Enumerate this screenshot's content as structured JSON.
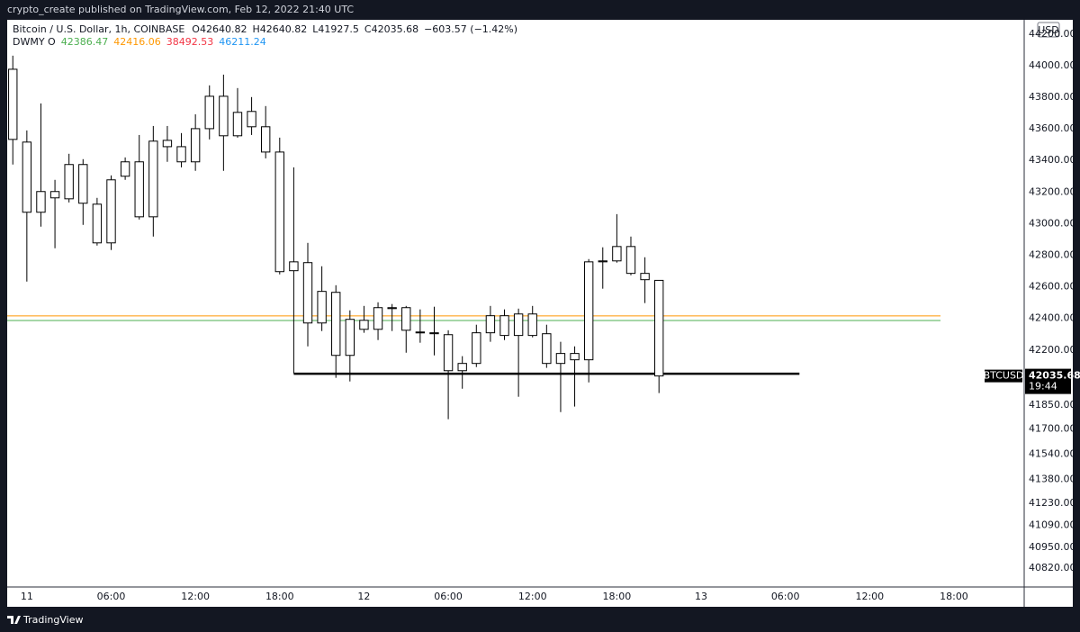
{
  "header": "crypto_create published on TradingView.com, Feb 12, 2022 21:40 UTC",
  "footer": "TradingView",
  "chart_data": {
    "type": "candlestick",
    "symbol_line": "Bitcoin / U.S. Dollar, 1h, COINBASE",
    "ohlc": [
      {
        "label": "O",
        "value": 42640.82
      },
      {
        "label": "H",
        "value": 42640.82
      },
      {
        "label": "L",
        "value": 41927.5
      },
      {
        "label": "C",
        "value": 42035.68
      }
    ],
    "change": "−603.57 (−1.42%)",
    "indicator": {
      "name": "DWMY O",
      "values": [
        42386.47,
        42416.06,
        38492.53,
        46211.24
      ],
      "colors": [
        "#4caf50",
        "#ff9800",
        "#f23645",
        "#2196f3"
      ]
    },
    "currency": "USD",
    "symbol": "BTCUSD",
    "last_price": 42035.68,
    "countdown": "19:44",
    "open": [
      43533,
      43516,
      43072,
      43163,
      43157,
      43129,
      43123,
      42878,
      43300,
      43391,
      43043,
      43527,
      43487,
      43391,
      43601,
      43806,
      43556,
      43710,
      43613,
      43453,
      42702,
      42753,
      42371,
      42565,
      42166,
      42388,
      42331,
      42468,
      42468,
      42314,
      42309,
      42297,
      42069,
      42115,
      42309,
      42417,
      42292,
      42428,
      42303,
      42115,
      42178,
      42138,
      42758,
      42764,
      42855,
      42685,
      42640.82
    ],
    "high": [
      44063,
      43590,
      43761,
      43277,
      43442,
      43408,
      43163,
      43305,
      43419,
      43561,
      43618,
      43618,
      43573,
      43692,
      43875,
      43943,
      43858,
      43801,
      43744,
      43544,
      43356,
      42878,
      42730,
      42610,
      42451,
      42479,
      42502,
      42491,
      42479,
      42457,
      42474,
      42325,
      42161,
      42360,
      42479,
      42457,
      42462,
      42479,
      42360,
      42252,
      42223,
      42776,
      42850,
      43060,
      42918,
      42787,
      42640.82
    ],
    "low": [
      43374,
      42633,
      42981,
      42844,
      43134,
      42992,
      42861,
      42833,
      43277,
      43026,
      42918,
      43391,
      43356,
      43334,
      43533,
      43334,
      43544,
      43561,
      43413,
      42679,
      42052,
      42223,
      42320,
      42024,
      42001,
      42309,
      42263,
      42320,
      42183,
      42246,
      42166,
      41762,
      41955,
      42092,
      42252,
      42263,
      41904,
      42280,
      42087,
      41807,
      41842,
      41995,
      42588,
      42753,
      42673,
      42497,
      41927.5
    ],
    "close": [
      43977,
      43072,
      43203,
      43203,
      43374,
      43374,
      42878,
      43277,
      43391,
      43043,
      43522,
      43487,
      43391,
      43601,
      43806,
      43556,
      43704,
      43613,
      43453,
      42696,
      42758,
      42371,
      42571,
      42166,
      42394,
      42331,
      42468,
      42462,
      42325,
      42314,
      42303,
      42069,
      42115,
      42309,
      42417,
      42292,
      42428,
      42292,
      42115,
      42178,
      42138,
      42758,
      42764,
      42855,
      42685,
      42645,
      42035.68
    ],
    "support_line": {
      "value": 42050,
      "x": [
        20,
        56
      ]
    },
    "xlim": [
      -0.4,
      72
    ],
    "xticks": [
      {
        "value": 1,
        "label": "11"
      },
      {
        "value": 7,
        "label": "06:00"
      },
      {
        "value": 13,
        "label": "12:00"
      },
      {
        "value": 19,
        "label": "18:00"
      },
      {
        "value": 25,
        "label": "12"
      },
      {
        "value": 31,
        "label": "06:00"
      },
      {
        "value": 37,
        "label": "12:00"
      },
      {
        "value": 43,
        "label": "18:00"
      },
      {
        "value": 49,
        "label": "13"
      },
      {
        "value": 55,
        "label": "06:00"
      },
      {
        "value": 61,
        "label": "12:00"
      },
      {
        "value": 67,
        "label": "18:00"
      }
    ],
    "ylim": [
      40700,
      44290
    ],
    "yticks": [
      {
        "value": 44200,
        "label": "44200.00"
      },
      {
        "value": 44000,
        "label": "44000.00"
      },
      {
        "value": 43800,
        "label": "43800.00"
      },
      {
        "value": 43600,
        "label": "43600.00"
      },
      {
        "value": 43400,
        "label": "43400.00"
      },
      {
        "value": 43200,
        "label": "43200.00"
      },
      {
        "value": 43000,
        "label": "43000.00"
      },
      {
        "value": 42800,
        "label": "42800.00"
      },
      {
        "value": 42600,
        "label": "42600.00"
      },
      {
        "value": 42400,
        "label": "42400.00"
      },
      {
        "value": 42200,
        "label": "42200.00"
      },
      {
        "value": 41850,
        "label": "41850.00"
      },
      {
        "value": 41700,
        "label": "41700.00"
      },
      {
        "value": 41540,
        "label": "41540.00"
      },
      {
        "value": 41380,
        "label": "41380.00"
      },
      {
        "value": 41230,
        "label": "41230.00"
      },
      {
        "value": 41090,
        "label": "41090.00"
      },
      {
        "value": 40950,
        "label": "40950.00"
      },
      {
        "value": 40820,
        "label": "40820.00"
      }
    ],
    "candle_color": "#ffffff",
    "outline_color": "#000000"
  }
}
